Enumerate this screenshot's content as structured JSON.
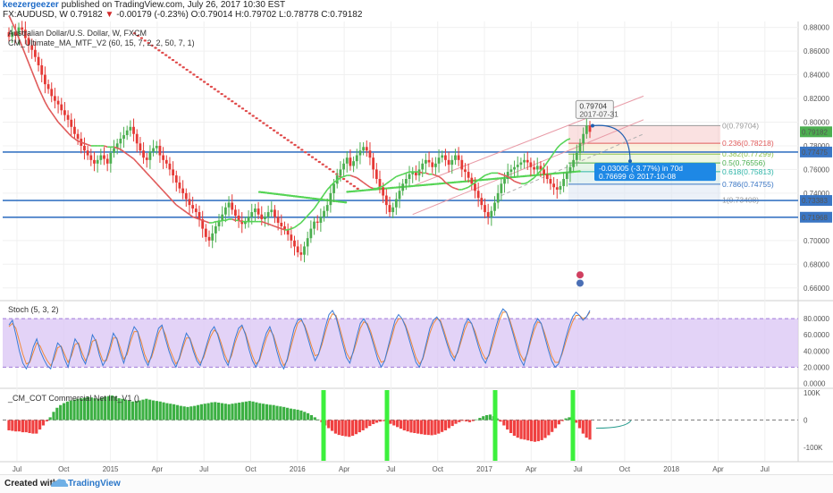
{
  "header": {
    "author": "keezergeezer",
    "published": "published on TradingView.com, July 26, 2017 10:30 EST",
    "symbol_line_prefix": "FX:AUDUSD, W",
    "last": "0.79182",
    "change_arrow": "▼",
    "change": "-0.00179 (-0.23%)",
    "ohlc": "O:0.79014 H:0.79702 L:0.78778 C:0.79182"
  },
  "footer": {
    "created_with": "Created with",
    "brand": "TradingView"
  },
  "colors": {
    "up": "#4caf50",
    "down": "#e53935",
    "ma_red": "#e05a5a",
    "ma_green": "#55d455",
    "level_line": "#3a76c4",
    "stoch_k": "#3a7bd5",
    "stoch_d": "#f08a3c",
    "stoch_band": "#dcc8f5",
    "cot_green": "#3cb043",
    "cot_red": "#f04040",
    "highlight": "#3cf03c"
  },
  "chart_data": [
    {
      "panel": "price",
      "type": "candlestick",
      "legend": [
        "Australian Dollar/U.S. Dollar, W, FXCM",
        "CM_Ultimate_MA_MTF_V2 (60, 15, 7, 2, 2, 50, 7, 1)"
      ],
      "ylim": [
        0.65,
        0.885
      ],
      "yticks": [
        "0.88000",
        "0.86000",
        "0.84000",
        "0.82000",
        "0.80000",
        "0.78000",
        "0.76000",
        "0.74000",
        "0.72000",
        "0.70000",
        "0.68000",
        "0.66000"
      ],
      "price_tags": [
        {
          "label": "0.79182",
          "value": 0.79182,
          "color": "#4caf50"
        },
        {
          "label": "0.77475",
          "value": 0.77475,
          "color": "#3a76c4"
        },
        {
          "label": "0.73383",
          "value": 0.73383,
          "color": "#3a76c4"
        },
        {
          "label": "0.71968",
          "value": 0.71968,
          "color": "#3a76c4"
        }
      ],
      "horizontal_levels": [
        0.77475,
        0.73383,
        0.71968
      ],
      "fib_levels": [
        {
          "label": "0(0.79704)",
          "value": 0.79704,
          "color": "#999999"
        },
        {
          "label": "0.236(0.78218)",
          "value": 0.78218,
          "color": "#e05a5a"
        },
        {
          "label": "0.382(0.77299)",
          "value": 0.77299,
          "color": "#8bc34a"
        },
        {
          "label": "0.5(0.76556)",
          "value": 0.76556,
          "color": "#4caf50"
        },
        {
          "label": "0.618(0.75813)",
          "value": 0.75813,
          "color": "#2ab3a6"
        },
        {
          "label": "0.786(0.74755)",
          "value": 0.74755,
          "color": "#3a76c4"
        },
        {
          "label": "1(0.73408)",
          "value": 0.73408,
          "color": "#999999"
        }
      ],
      "high_callout": {
        "price": "0.79704",
        "date": "2017-07-31"
      },
      "projection": {
        "change": "-0.03005 (-3.77%) in 70d",
        "target": "0.76699",
        "date": "2017-10-08"
      },
      "closes": [
        0.872,
        0.876,
        0.873,
        0.88,
        0.878,
        0.871,
        0.865,
        0.861,
        0.855,
        0.848,
        0.84,
        0.832,
        0.828,
        0.822,
        0.818,
        0.815,
        0.81,
        0.806,
        0.802,
        0.796,
        0.79,
        0.786,
        0.78,
        0.776,
        0.772,
        0.768,
        0.765,
        0.768,
        0.772,
        0.769,
        0.765,
        0.774,
        0.778,
        0.782,
        0.786,
        0.789,
        0.793,
        0.796,
        0.79,
        0.782,
        0.776,
        0.77,
        0.768,
        0.775,
        0.778,
        0.78,
        0.772,
        0.768,
        0.765,
        0.76,
        0.755,
        0.749,
        0.744,
        0.74,
        0.735,
        0.73,
        0.727,
        0.724,
        0.718,
        0.71,
        0.703,
        0.7,
        0.706,
        0.712,
        0.717,
        0.722,
        0.728,
        0.732,
        0.726,
        0.721,
        0.717,
        0.714,
        0.716,
        0.72,
        0.724,
        0.727,
        0.722,
        0.718,
        0.72,
        0.724,
        0.726,
        0.72,
        0.715,
        0.712,
        0.709,
        0.705,
        0.7,
        0.695,
        0.69,
        0.688,
        0.695,
        0.702,
        0.71,
        0.716,
        0.715,
        0.72,
        0.725,
        0.73,
        0.74,
        0.748,
        0.755,
        0.76,
        0.765,
        0.77,
        0.763,
        0.767,
        0.772,
        0.776,
        0.779,
        0.776,
        0.77,
        0.76,
        0.752,
        0.745,
        0.738,
        0.73,
        0.724,
        0.728,
        0.735,
        0.742,
        0.748,
        0.752,
        0.756,
        0.758,
        0.755,
        0.76,
        0.765,
        0.768,
        0.766,
        0.762,
        0.765,
        0.77,
        0.772,
        0.768,
        0.764,
        0.768,
        0.772,
        0.768,
        0.76,
        0.758,
        0.753,
        0.748,
        0.742,
        0.736,
        0.73,
        0.724,
        0.72,
        0.725,
        0.732,
        0.74,
        0.748,
        0.752,
        0.758,
        0.76,
        0.762,
        0.764,
        0.766,
        0.768,
        0.766,
        0.762,
        0.76,
        0.763,
        0.76,
        0.756,
        0.752,
        0.748,
        0.745,
        0.743,
        0.746,
        0.752,
        0.757,
        0.762,
        0.768,
        0.774,
        0.782,
        0.79,
        0.797,
        0.7918
      ],
      "ma_red": [
        0.89,
        0.884,
        0.878,
        0.871,
        0.864,
        0.857,
        0.85,
        0.843,
        0.836,
        0.829,
        0.823,
        0.817,
        0.812,
        0.808,
        0.804,
        0.8,
        0.797,
        0.794,
        0.791,
        0.788,
        0.786,
        0.784,
        0.783,
        0.782,
        0.781,
        0.78,
        0.78,
        0.78,
        0.78,
        0.78,
        0.779,
        0.779,
        0.779,
        0.778,
        0.777,
        0.775,
        0.773,
        0.771,
        0.769,
        0.766,
        0.763,
        0.76,
        0.757,
        0.754,
        0.751,
        0.748,
        0.745,
        0.742,
        0.739,
        0.736,
        0.733,
        0.73,
        0.728,
        0.726,
        0.724,
        0.722,
        0.72,
        0.719,
        0.718,
        0.717,
        0.716,
        0.715,
        0.715,
        0.716,
        0.716,
        0.717,
        0.717,
        0.718,
        0.718,
        0.717,
        0.717,
        0.716,
        0.716,
        0.716,
        0.716,
        0.716,
        0.716,
        0.716,
        0.715,
        0.714,
        0.713,
        0.712,
        0.711,
        0.71,
        0.709,
        0.709,
        0.71,
        0.711,
        0.713,
        0.715,
        0.718,
        0.721,
        0.724,
        0.727,
        0.731,
        0.735,
        0.739,
        0.743,
        0.746,
        0.749,
        0.751,
        0.753,
        0.754,
        0.755,
        0.755,
        0.754,
        0.753,
        0.751,
        0.749,
        0.747,
        0.745,
        0.744,
        0.744,
        0.745,
        0.746,
        0.748,
        0.75,
        0.752,
        0.754,
        0.755,
        0.756,
        0.757,
        0.758,
        0.758,
        0.758,
        0.758,
        0.757,
        0.757,
        0.756,
        0.756,
        0.755,
        0.754,
        0.752,
        0.749,
        0.747,
        0.745,
        0.744,
        0.743,
        0.743,
        0.744,
        0.745,
        0.747,
        0.749,
        0.751,
        0.753,
        0.755,
        0.756,
        0.757,
        0.757,
        0.757,
        0.756,
        0.755,
        0.754,
        0.752,
        0.75,
        0.749,
        0.748,
        0.748,
        0.749,
        0.751,
        0.753,
        0.756,
        0.759,
        0.762,
        0.766,
        0.77,
        0.774,
        0.778,
        0.781,
        0.783,
        0.785,
        0.786
      ]
    },
    {
      "panel": "stochastic",
      "type": "line",
      "legend": "Stoch (5, 3, 2)",
      "ylim": [
        -5,
        100
      ],
      "yticks": [
        "80.0000",
        "60.0000",
        "40.0000",
        "20.0000",
        "0.0000"
      ],
      "band": [
        20,
        80
      ],
      "k": [
        72,
        78,
        60,
        40,
        25,
        18,
        28,
        45,
        55,
        40,
        30,
        22,
        18,
        35,
        50,
        45,
        30,
        20,
        38,
        55,
        48,
        32,
        24,
        40,
        60,
        52,
        35,
        22,
        30,
        45,
        62,
        55,
        38,
        25,
        40,
        58,
        70,
        64,
        45,
        30,
        22,
        35,
        52,
        68,
        72,
        55,
        40,
        28,
        20,
        32,
        48,
        62,
        55,
        40,
        28,
        22,
        35,
        50,
        64,
        70,
        60,
        45,
        30,
        22,
        38,
        55,
        68,
        72,
        60,
        42,
        28,
        20,
        30,
        48,
        62,
        70,
        58,
        40,
        25,
        18,
        30,
        50,
        68,
        78,
        80,
        70,
        55,
        40,
        28,
        36,
        52,
        70,
        85,
        90,
        82,
        65,
        48,
        32,
        25,
        40,
        58,
        74,
        80,
        72,
        60,
        45,
        30,
        20,
        28,
        45,
        62,
        78,
        85,
        80,
        70,
        55,
        40,
        26,
        20,
        32,
        50,
        68,
        78,
        82,
        76,
        62,
        48,
        35,
        28,
        40,
        56,
        72,
        80,
        74,
        60,
        45,
        32,
        25,
        36,
        54,
        70,
        84,
        92,
        88,
        75,
        60,
        44,
        30,
        22,
        38,
        56,
        72,
        80,
        74,
        58,
        42,
        28,
        20,
        24,
        38,
        55,
        70,
        82,
        88,
        84,
        78,
        82,
        90
      ],
      "d": [
        70,
        74,
        68,
        52,
        36,
        24,
        26,
        38,
        50,
        46,
        36,
        28,
        22,
        30,
        44,
        46,
        36,
        26,
        34,
        48,
        50,
        38,
        28,
        36,
        52,
        54,
        40,
        28,
        28,
        40,
        56,
        56,
        44,
        30,
        36,
        52,
        64,
        64,
        52,
        36,
        26,
        32,
        46,
        62,
        70,
        60,
        45,
        34,
        24,
        30,
        44,
        56,
        56,
        44,
        32,
        25,
        32,
        46,
        58,
        66,
        62,
        50,
        36,
        26,
        34,
        50,
        62,
        70,
        62,
        48,
        34,
        24,
        28,
        42,
        56,
        66,
        60,
        46,
        32,
        22,
        28,
        44,
        60,
        74,
        78,
        72,
        60,
        46,
        34,
        36,
        48,
        64,
        78,
        86,
        84,
        70,
        54,
        38,
        30,
        38,
        52,
        68,
        76,
        74,
        64,
        50,
        36,
        26,
        28,
        42,
        56,
        72,
        80,
        80,
        72,
        60,
        46,
        32,
        24,
        30,
        46,
        62,
        74,
        80,
        78,
        66,
        52,
        40,
        32,
        38,
        52,
        66,
        76,
        74,
        64,
        50,
        38,
        30,
        34,
        48,
        64,
        78,
        88,
        88,
        78,
        64,
        50,
        36,
        28,
        36,
        52,
        66,
        76,
        74,
        62,
        48,
        34,
        26,
        26,
        36,
        50,
        64,
        76,
        84,
        84,
        80,
        82,
        88
      ]
    },
    {
      "panel": "cot",
      "type": "bar",
      "legend": "_CM_COT Commercial Net Int_V1 ()",
      "ylim": [
        -150000,
        110000
      ],
      "yticks": [
        "100K",
        "0",
        "-100K"
      ],
      "values": [
        -38000,
        -40000,
        -42000,
        -42000,
        -45000,
        -45000,
        -48000,
        -50000,
        -50000,
        -35000,
        -20000,
        -5000,
        10000,
        30000,
        45000,
        55000,
        62000,
        68000,
        72000,
        75000,
        78000,
        80000,
        82000,
        85000,
        83000,
        80000,
        78000,
        82000,
        85000,
        88000,
        90000,
        86000,
        80000,
        78000,
        75000,
        72000,
        68000,
        70000,
        72000,
        75000,
        78000,
        75000,
        72000,
        70000,
        68000,
        65000,
        62000,
        60000,
        58000,
        55000,
        52000,
        50000,
        48000,
        50000,
        52000,
        55000,
        58000,
        60000,
        62000,
        65000,
        66000,
        64000,
        62000,
        60000,
        58000,
        60000,
        62000,
        64000,
        66000,
        68000,
        70000,
        68000,
        65000,
        62000,
        60000,
        58000,
        56000,
        55000,
        52000,
        50000,
        48000,
        45000,
        42000,
        40000,
        38000,
        35000,
        30000,
        25000,
        18000,
        10000,
        2000,
        -8000,
        -20000,
        -30000,
        -40000,
        -50000,
        -55000,
        -58000,
        -60000,
        -62000,
        -58000,
        -52000,
        -45000,
        -38000,
        -30000,
        -22000,
        -15000,
        -10000,
        -6000,
        -4000,
        -8000,
        -14000,
        -20000,
        -26000,
        -32000,
        -38000,
        -42000,
        -46000,
        -48000,
        -50000,
        -52000,
        -54000,
        -55000,
        -56000,
        -54000,
        -50000,
        -44000,
        -38000,
        -30000,
        -22000,
        -14000,
        -8000,
        -3000,
        -5000,
        -8000,
        -4000,
        2000,
        8000,
        14000,
        18000,
        20000,
        14000,
        6000,
        -6000,
        -20000,
        -35000,
        -48000,
        -58000,
        -65000,
        -70000,
        -72000,
        -75000,
        -78000,
        -80000,
        -78000,
        -74000,
        -66000,
        -56000,
        -44000,
        -30000,
        -16000,
        -4000,
        6000,
        10000,
        6000,
        -10000,
        -30000,
        -50000,
        -65000,
        -72000
      ]
    }
  ],
  "time_axis": [
    "Jul",
    "Oct",
    "2015",
    "Apr",
    "Jul",
    "Oct",
    "2016",
    "Apr",
    "Jul",
    "Oct",
    "2017",
    "Apr",
    "Jul",
    "Oct",
    "2018",
    "Apr",
    "Jul"
  ]
}
